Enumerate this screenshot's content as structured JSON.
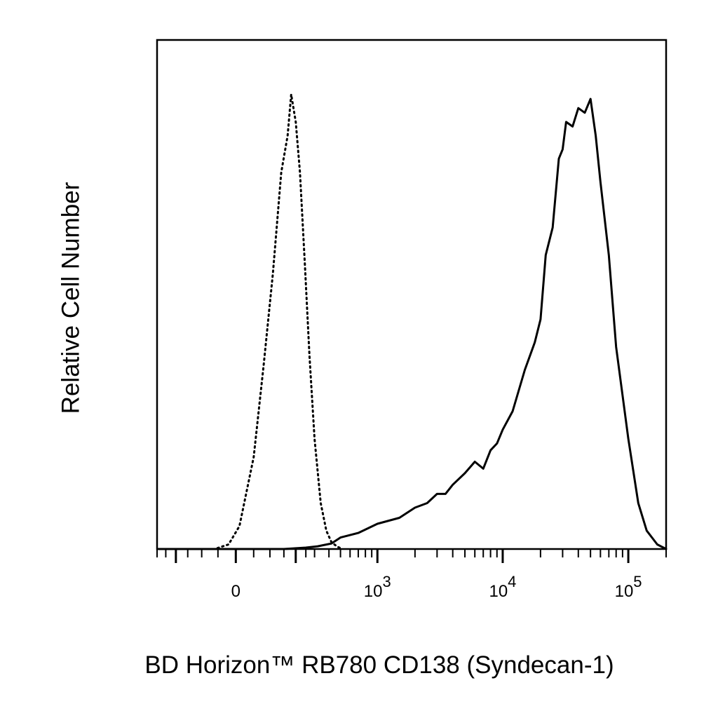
{
  "chart_data": {
    "type": "line",
    "title": "",
    "xlabel": "BD Horizon™ RB780 CD138 (Syndecan-1)",
    "ylabel": "Relative Cell Number",
    "x_scale": "biexponential",
    "xlim": [
      -300,
      200000
    ],
    "ylim": [
      0,
      1
    ],
    "grid": false,
    "legend": "none",
    "x_tick_labels": [
      {
        "value": 0,
        "text": "0"
      },
      {
        "value": 1000,
        "base": "10",
        "exp": "3"
      },
      {
        "value": 10000,
        "base": "10",
        "exp": "4"
      },
      {
        "value": 100000,
        "base": "10",
        "exp": "5"
      }
    ],
    "series": [
      {
        "style": "dotted",
        "color": "#000000",
        "x": [
          -290,
          -200,
          -120,
          -60,
          -20,
          10,
          50,
          80,
          110,
          140,
          165,
          180,
          200,
          220,
          245,
          270,
          300,
          340,
          380,
          420,
          470,
          520
        ],
        "y": [
          0.0,
          0.0,
          0.0,
          0.0,
          0.01,
          0.05,
          0.2,
          0.4,
          0.6,
          0.82,
          0.9,
          0.99,
          0.93,
          0.82,
          0.62,
          0.42,
          0.24,
          0.1,
          0.04,
          0.015,
          0.005,
          0.0
        ]
      },
      {
        "style": "solid",
        "color": "#000000",
        "x": [
          -290,
          150,
          250,
          320,
          420,
          500,
          700,
          1000,
          1500,
          2000,
          2500,
          3000,
          3500,
          4000,
          5000,
          6000,
          7000,
          8000,
          9000,
          10000,
          12000,
          15000,
          18000,
          20000,
          22000,
          25000,
          28000,
          30000,
          32000,
          36000,
          40000,
          45000,
          50000,
          55000,
          60000,
          70000,
          80000,
          100000,
          120000,
          140000,
          170000,
          200000
        ],
        "y": [
          0.0,
          0.0,
          0.003,
          0.006,
          0.012,
          0.025,
          0.035,
          0.055,
          0.068,
          0.09,
          0.1,
          0.12,
          0.12,
          0.14,
          0.165,
          0.19,
          0.175,
          0.215,
          0.23,
          0.26,
          0.3,
          0.39,
          0.45,
          0.5,
          0.64,
          0.7,
          0.85,
          0.87,
          0.93,
          0.92,
          0.96,
          0.95,
          0.98,
          0.9,
          0.8,
          0.64,
          0.44,
          0.24,
          0.1,
          0.04,
          0.01,
          0.0
        ]
      }
    ]
  }
}
